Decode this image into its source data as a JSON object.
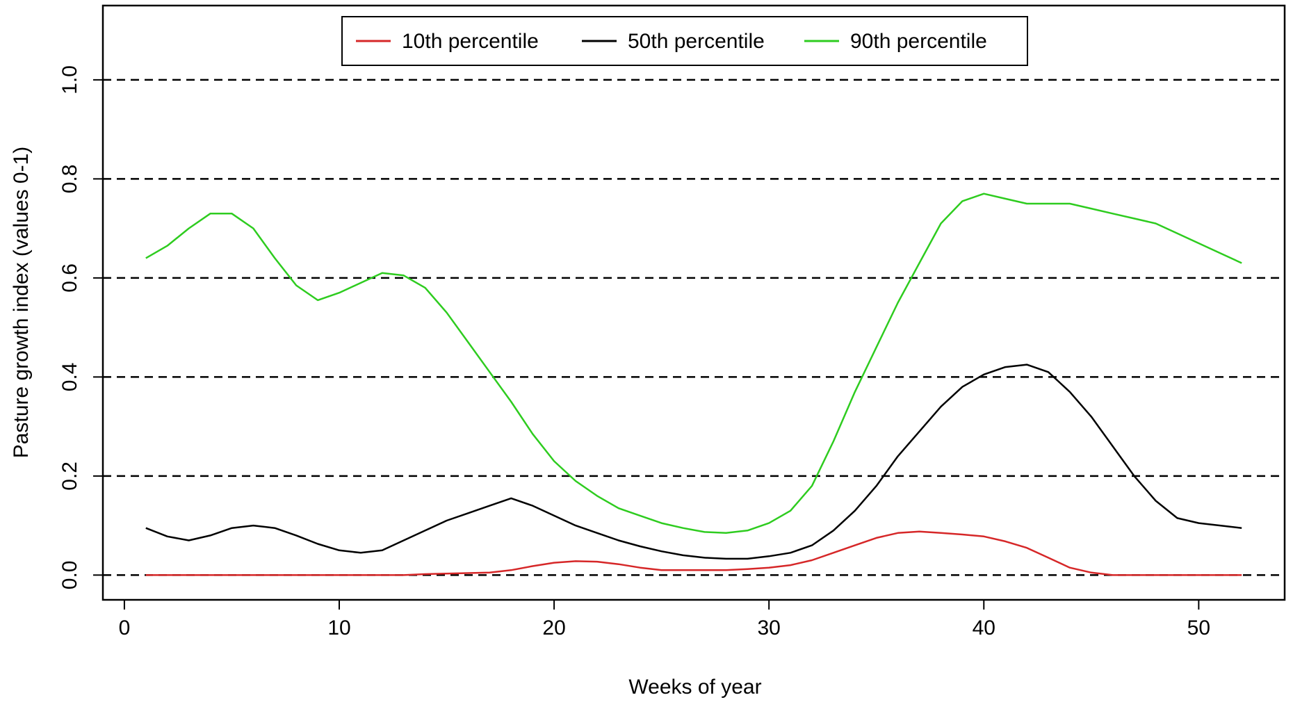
{
  "chart_data": {
    "type": "line",
    "title": "",
    "xlabel": "Weeks of year",
    "ylabel": "Pasture growth index (values 0-1)",
    "xlim": [
      -1,
      54
    ],
    "ylim": [
      -0.05,
      1.15
    ],
    "x_ticks": [
      0,
      10,
      20,
      30,
      40,
      50
    ],
    "x_tick_labels": [
      "0",
      "10",
      "20",
      "30",
      "40",
      "50"
    ],
    "y_ticks": [
      0.0,
      0.2,
      0.4,
      0.6,
      0.8,
      1.0
    ],
    "y_tick_labels": [
      "0.0",
      "0.2",
      "0.4",
      "0.6",
      "0.8",
      "1.0"
    ],
    "grid": "horizontal dashed lines at y ticks",
    "legend_position": "top-center",
    "x": [
      1,
      2,
      3,
      4,
      5,
      6,
      7,
      8,
      9,
      10,
      11,
      12,
      13,
      14,
      15,
      16,
      17,
      18,
      19,
      20,
      21,
      22,
      23,
      24,
      25,
      26,
      27,
      28,
      29,
      30,
      31,
      32,
      33,
      34,
      35,
      36,
      37,
      38,
      39,
      40,
      41,
      42,
      43,
      44,
      45,
      46,
      47,
      48,
      49,
      50,
      51,
      52
    ],
    "series": [
      {
        "name": "10th percentile",
        "color": "#d62728",
        "values": [
          0,
          0,
          0,
          0,
          0,
          0,
          0,
          0,
          0,
          0,
          0,
          0,
          0,
          0.002,
          0.003,
          0.004,
          0.005,
          0.01,
          0.018,
          0.025,
          0.028,
          0.027,
          0.022,
          0.015,
          0.01,
          0.01,
          0.01,
          0.01,
          0.012,
          0.015,
          0.02,
          0.03,
          0.045,
          0.06,
          0.075,
          0.085,
          0.088,
          0.085,
          0.082,
          0.078,
          0.068,
          0.055,
          0.035,
          0.015,
          0.005,
          0,
          0,
          0,
          0,
          0,
          0,
          0
        ]
      },
      {
        "name": "50th percentile",
        "color": "#000000",
        "values": [
          0.095,
          0.078,
          0.07,
          0.08,
          0.095,
          0.1,
          0.095,
          0.08,
          0.063,
          0.05,
          0.045,
          0.05,
          0.07,
          0.09,
          0.11,
          0.125,
          0.14,
          0.155,
          0.14,
          0.12,
          0.1,
          0.085,
          0.07,
          0.058,
          0.048,
          0.04,
          0.035,
          0.033,
          0.033,
          0.038,
          0.045,
          0.06,
          0.09,
          0.13,
          0.18,
          0.24,
          0.29,
          0.34,
          0.38,
          0.405,
          0.42,
          0.425,
          0.41,
          0.37,
          0.32,
          0.26,
          0.2,
          0.15,
          0.115,
          0.105,
          0.1,
          0.095
        ]
      },
      {
        "name": "90th percentile",
        "color": "#2ecc1f",
        "values": [
          0.64,
          0.665,
          0.7,
          0.73,
          0.73,
          0.7,
          0.64,
          0.585,
          0.555,
          0.57,
          0.59,
          0.61,
          0.605,
          0.58,
          0.53,
          0.47,
          0.41,
          0.35,
          0.285,
          0.23,
          0.19,
          0.16,
          0.135,
          0.12,
          0.105,
          0.095,
          0.087,
          0.085,
          0.09,
          0.105,
          0.13,
          0.18,
          0.27,
          0.37,
          0.46,
          0.55,
          0.63,
          0.71,
          0.755,
          0.77,
          0.76,
          0.75,
          0.75,
          0.75,
          0.74,
          0.73,
          0.72,
          0.71,
          0.69,
          0.67,
          0.65,
          0.63
        ]
      }
    ]
  }
}
